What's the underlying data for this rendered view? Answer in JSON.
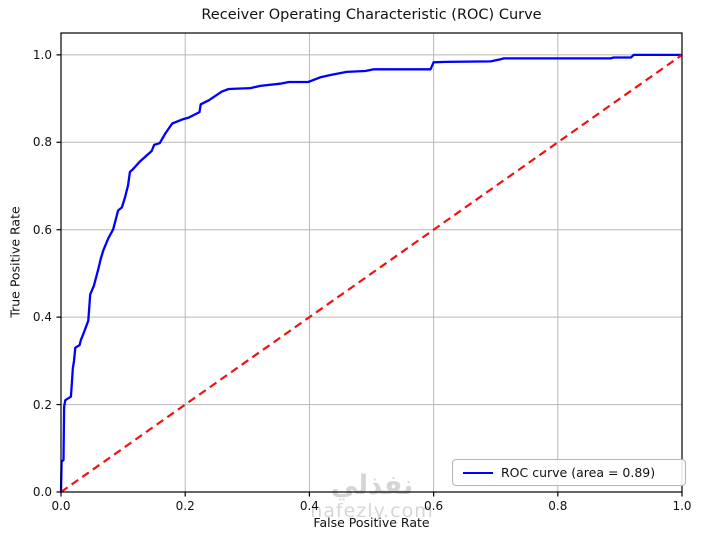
{
  "figure": {
    "watermark": {
      "line1": "نفذلي",
      "line2": "nafezly.com"
    }
  },
  "chart_data": {
    "type": "line",
    "title": "Receiver Operating Characteristic (ROC) Curve",
    "xlabel": "False Positive Rate",
    "ylabel": "True Positive Rate",
    "xlim": [
      0.0,
      1.0
    ],
    "ylim": [
      0.0,
      1.05
    ],
    "grid": true,
    "x_ticks": [
      0.0,
      0.2,
      0.4,
      0.6,
      0.8,
      1.0
    ],
    "y_ticks": [
      0.0,
      0.2,
      0.4,
      0.6,
      0.8,
      1.0
    ],
    "x_tick_labels": [
      "0.0",
      "0.2",
      "0.4",
      "0.6",
      "0.8",
      "1.0"
    ],
    "y_tick_labels": [
      "0.0",
      "0.2",
      "0.4",
      "0.6",
      "0.8",
      "1.0"
    ],
    "auc": 0.89,
    "legend": {
      "position": "lower right",
      "label": "ROC curve (area = 0.89)"
    },
    "style": {
      "grid_color": "#b8b8b8",
      "spine_color": "#000000",
      "roc_color": "#0000ff",
      "chance_color": "#f01212",
      "background": "#ffffff"
    },
    "series": [
      {
        "name": "ROC curve",
        "color": "#0000ff",
        "dash": "solid",
        "width": 2.3,
        "points": [
          [
            0.0,
            0.0
          ],
          [
            0.001,
            0.07
          ],
          [
            0.004,
            0.073
          ],
          [
            0.005,
            0.195
          ],
          [
            0.007,
            0.21
          ],
          [
            0.016,
            0.218
          ],
          [
            0.018,
            0.26
          ],
          [
            0.019,
            0.282
          ],
          [
            0.021,
            0.3
          ],
          [
            0.023,
            0.33
          ],
          [
            0.03,
            0.336
          ],
          [
            0.032,
            0.348
          ],
          [
            0.036,
            0.362
          ],
          [
            0.044,
            0.392
          ],
          [
            0.047,
            0.452
          ],
          [
            0.053,
            0.472
          ],
          [
            0.06,
            0.51
          ],
          [
            0.064,
            0.533
          ],
          [
            0.068,
            0.552
          ],
          [
            0.076,
            0.58
          ],
          [
            0.084,
            0.601
          ],
          [
            0.092,
            0.644
          ],
          [
            0.098,
            0.651
          ],
          [
            0.103,
            0.674
          ],
          [
            0.108,
            0.702
          ],
          [
            0.111,
            0.732
          ],
          [
            0.115,
            0.737
          ],
          [
            0.127,
            0.756
          ],
          [
            0.146,
            0.78
          ],
          [
            0.15,
            0.794
          ],
          [
            0.159,
            0.798
          ],
          [
            0.168,
            0.82
          ],
          [
            0.179,
            0.843
          ],
          [
            0.197,
            0.853
          ],
          [
            0.205,
            0.856
          ],
          [
            0.219,
            0.866
          ],
          [
            0.223,
            0.869
          ],
          [
            0.225,
            0.887
          ],
          [
            0.238,
            0.896
          ],
          [
            0.259,
            0.916
          ],
          [
            0.27,
            0.922
          ],
          [
            0.305,
            0.924
          ],
          [
            0.321,
            0.929
          ],
          [
            0.353,
            0.934
          ],
          [
            0.367,
            0.938
          ],
          [
            0.398,
            0.938
          ],
          [
            0.418,
            0.949
          ],
          [
            0.434,
            0.954
          ],
          [
            0.46,
            0.961
          ],
          [
            0.49,
            0.963
          ],
          [
            0.504,
            0.967
          ],
          [
            0.595,
            0.967
          ],
          [
            0.6,
            0.983
          ],
          [
            0.619,
            0.984
          ],
          [
            0.692,
            0.985
          ],
          [
            0.708,
            0.99
          ],
          [
            0.713,
            0.992
          ],
          [
            0.885,
            0.992
          ],
          [
            0.89,
            0.994
          ],
          [
            0.918,
            0.994
          ],
          [
            0.922,
            1.0
          ],
          [
            1.0,
            1.0
          ]
        ]
      },
      {
        "name": "chance diagonal",
        "color": "#f01212",
        "dash": "dashed",
        "width": 2.2,
        "points": [
          [
            0.0,
            0.0
          ],
          [
            1.0,
            1.0
          ]
        ]
      }
    ]
  }
}
